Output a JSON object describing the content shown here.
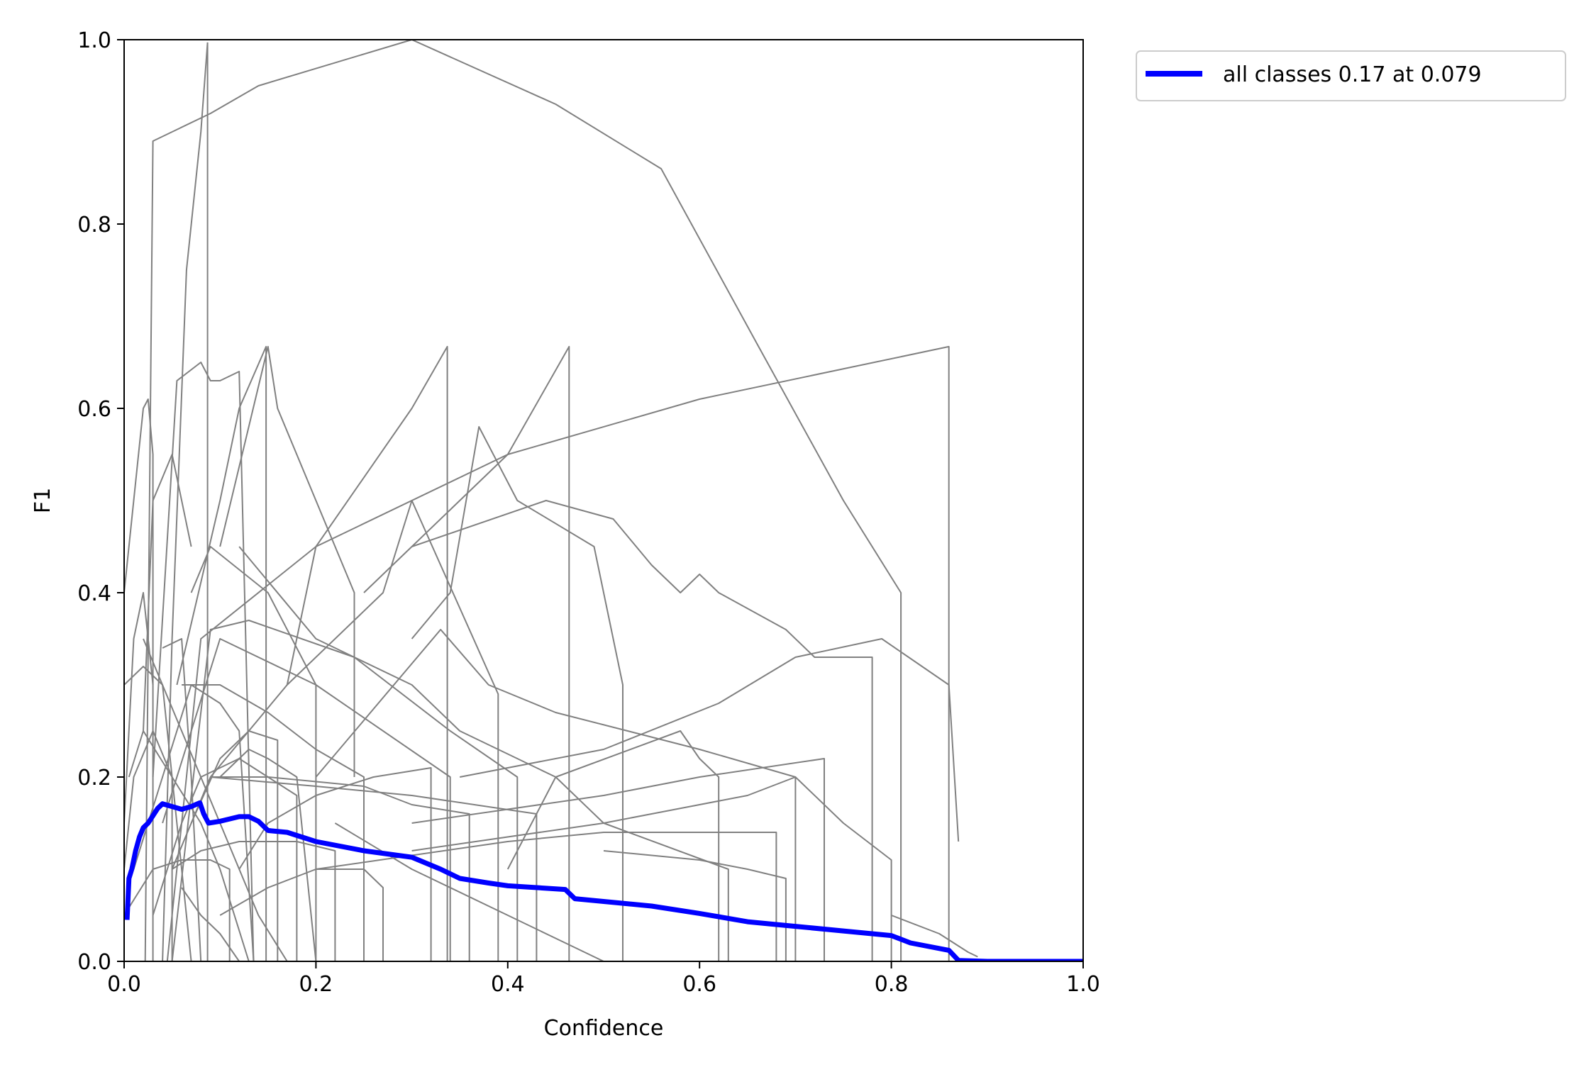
{
  "chart_data": {
    "type": "line",
    "xlabel": "Confidence",
    "ylabel": "F1",
    "xlim": [
      0.0,
      1.0
    ],
    "ylim": [
      0.0,
      1.0
    ],
    "xticks": [
      "0.0",
      "0.2",
      "0.4",
      "0.6",
      "0.8",
      "1.0"
    ],
    "yticks": [
      "0.0",
      "0.2",
      "0.4",
      "0.6",
      "0.8",
      "1.0"
    ],
    "grid": false,
    "legend": {
      "placement": "outside-top-right",
      "entries": [
        "all classes 0.17 at 0.079"
      ]
    },
    "colors": {
      "per_class": "#808080",
      "all_classes": "#0000ff"
    },
    "series": [
      {
        "name": "all classes 0.17 at 0.079",
        "color": "#0000ff",
        "x": [
          0.003,
          0.005,
          0.008,
          0.012,
          0.016,
          0.02,
          0.025,
          0.03,
          0.035,
          0.04,
          0.05,
          0.06,
          0.07,
          0.079,
          0.083,
          0.088,
          0.1,
          0.12,
          0.13,
          0.14,
          0.15,
          0.17,
          0.2,
          0.25,
          0.3,
          0.33,
          0.35,
          0.38,
          0.4,
          0.46,
          0.47,
          0.55,
          0.6,
          0.65,
          0.7,
          0.75,
          0.8,
          0.82,
          0.86,
          0.87,
          0.9,
          1.0
        ],
        "y": [
          0.045,
          0.09,
          0.1,
          0.12,
          0.135,
          0.145,
          0.15,
          0.158,
          0.166,
          0.171,
          0.168,
          0.165,
          0.168,
          0.172,
          0.16,
          0.15,
          0.152,
          0.157,
          0.157,
          0.152,
          0.142,
          0.14,
          0.13,
          0.12,
          0.113,
          0.1,
          0.09,
          0.085,
          0.082,
          0.078,
          0.068,
          0.06,
          0.052,
          0.043,
          0.038,
          0.033,
          0.028,
          0.02,
          0.012,
          0.001,
          0.0,
          0.0
        ]
      },
      {
        "x": [
          0.022,
          0.03,
          0.09,
          0.14,
          0.3,
          0.45,
          0.56,
          0.66,
          0.75,
          0.81,
          0.81
        ],
        "y": [
          0.0,
          0.89,
          0.92,
          0.95,
          1.0,
          0.93,
          0.86,
          0.67,
          0.5,
          0.4,
          0.0
        ]
      },
      {
        "x": [
          0.04,
          0.05,
          0.065,
          0.08,
          0.087
        ],
        "y": [
          0.0,
          0.35,
          0.75,
          0.9,
          0.997
        ]
      },
      {
        "x": [
          0.087,
          0.087
        ],
        "y": [
          0.997,
          0.0
        ]
      },
      {
        "x": [
          0.045,
          0.08,
          0.2,
          0.4,
          0.6,
          0.86,
          0.86
        ],
        "y": [
          0.0,
          0.35,
          0.45,
          0.55,
          0.61,
          0.667,
          0.0
        ]
      },
      {
        "x": [
          0.03,
          0.055,
          0.08,
          0.09,
          0.1,
          0.12,
          0.135
        ],
        "y": [
          0.2,
          0.63,
          0.65,
          0.63,
          0.63,
          0.64,
          0.0
        ]
      },
      {
        "x": [
          0.0,
          0.02,
          0.025,
          0.03,
          0.03
        ],
        "y": [
          0.4,
          0.6,
          0.61,
          0.55,
          0.0
        ]
      },
      {
        "x": [
          0.055,
          0.1,
          0.12,
          0.148,
          0.148
        ],
        "y": [
          0.3,
          0.5,
          0.6,
          0.667,
          0.0
        ]
      },
      {
        "x": [
          0.1,
          0.15,
          0.16,
          0.2,
          0.24,
          0.24
        ],
        "y": [
          0.45,
          0.667,
          0.6,
          0.5,
          0.4,
          0.2
        ]
      },
      {
        "x": [
          0.05,
          0.09,
          0.17,
          0.27,
          0.3,
          0.39,
          0.39
        ],
        "y": [
          0.1,
          0.2,
          0.3,
          0.4,
          0.5,
          0.29,
          0.0
        ]
      },
      {
        "x": [
          0.17,
          0.2,
          0.3,
          0.337,
          0.337
        ],
        "y": [
          0.3,
          0.45,
          0.6,
          0.667,
          0.0
        ]
      },
      {
        "x": [
          0.25,
          0.3,
          0.35,
          0.4,
          0.464,
          0.464
        ],
        "y": [
          0.4,
          0.45,
          0.5,
          0.55,
          0.667,
          0.0
        ]
      },
      {
        "x": [
          0.3,
          0.34,
          0.37,
          0.41,
          0.49,
          0.52,
          0.52
        ],
        "y": [
          0.35,
          0.4,
          0.58,
          0.5,
          0.45,
          0.3,
          0.0
        ]
      },
      {
        "x": [
          0.3,
          0.44,
          0.51,
          0.55,
          0.58,
          0.6,
          0.62,
          0.69,
          0.72,
          0.78,
          0.78
        ],
        "y": [
          0.45,
          0.5,
          0.48,
          0.43,
          0.4,
          0.42,
          0.4,
          0.36,
          0.33,
          0.33,
          0.0
        ]
      },
      {
        "x": [
          0.2,
          0.33,
          0.38,
          0.45,
          0.6,
          0.7,
          0.75,
          0.8,
          0.8
        ],
        "y": [
          0.2,
          0.36,
          0.3,
          0.27,
          0.23,
          0.2,
          0.15,
          0.11,
          0.0
        ]
      },
      {
        "x": [
          0.35,
          0.5,
          0.62,
          0.7,
          0.79,
          0.86,
          0.87
        ],
        "y": [
          0.2,
          0.23,
          0.28,
          0.33,
          0.35,
          0.3,
          0.13
        ]
      },
      {
        "x": [
          0.4,
          0.45,
          0.58,
          0.6,
          0.62,
          0.62
        ],
        "y": [
          0.1,
          0.2,
          0.25,
          0.22,
          0.2,
          0.0
        ]
      },
      {
        "x": [
          0.3,
          0.5,
          0.6,
          0.73,
          0.73
        ],
        "y": [
          0.15,
          0.18,
          0.2,
          0.22,
          0.0
        ]
      },
      {
        "x": [
          0.3,
          0.5,
          0.65,
          0.7,
          0.7
        ],
        "y": [
          0.12,
          0.15,
          0.18,
          0.2,
          0.0
        ]
      },
      {
        "x": [
          0.12,
          0.2,
          0.3,
          0.35,
          0.45,
          0.5,
          0.63,
          0.63
        ],
        "y": [
          0.45,
          0.35,
          0.3,
          0.25,
          0.2,
          0.15,
          0.1,
          0.0
        ]
      },
      {
        "x": [
          0.2,
          0.4,
          0.5,
          0.68,
          0.68
        ],
        "y": [
          0.1,
          0.13,
          0.14,
          0.14,
          0.0
        ]
      },
      {
        "x": [
          0.04,
          0.1,
          0.2,
          0.34,
          0.34
        ],
        "y": [
          0.15,
          0.35,
          0.3,
          0.2,
          0.0
        ]
      },
      {
        "x": [
          0.02,
          0.03,
          0.05,
          0.07
        ],
        "y": [
          0.25,
          0.5,
          0.55,
          0.45
        ]
      },
      {
        "x": [
          0.05,
          0.09,
          0.13,
          0.24,
          0.34,
          0.41,
          0.41
        ],
        "y": [
          0.0,
          0.36,
          0.37,
          0.33,
          0.25,
          0.2,
          0.0
        ]
      },
      {
        "x": [
          0.09,
          0.2,
          0.3,
          0.43,
          0.43
        ],
        "y": [
          0.2,
          0.19,
          0.18,
          0.16,
          0.0
        ]
      },
      {
        "x": [
          0.06,
          0.1,
          0.15,
          0.2,
          0.25,
          0.25
        ],
        "y": [
          0.3,
          0.3,
          0.27,
          0.23,
          0.2,
          0.0
        ]
      },
      {
        "x": [
          0.01,
          0.04,
          0.07,
          0.1,
          0.12,
          0.135
        ],
        "y": [
          0.1,
          0.2,
          0.3,
          0.28,
          0.25,
          0.0
        ]
      },
      {
        "x": [
          0.07,
          0.1,
          0.13,
          0.16,
          0.16
        ],
        "y": [
          0.15,
          0.22,
          0.25,
          0.24,
          0.0
        ]
      },
      {
        "x": [
          0.12,
          0.15,
          0.2,
          0.26,
          0.32,
          0.32
        ],
        "y": [
          0.1,
          0.15,
          0.18,
          0.2,
          0.21,
          0.0
        ]
      },
      {
        "x": [
          0.03,
          0.06,
          0.08,
          0.12,
          0.15,
          0.18,
          0.18
        ],
        "y": [
          0.05,
          0.15,
          0.2,
          0.22,
          0.2,
          0.18,
          0.0
        ]
      },
      {
        "x": [
          0.0,
          0.03,
          0.06,
          0.09,
          0.11,
          0.11
        ],
        "y": [
          0.05,
          0.1,
          0.11,
          0.11,
          0.1,
          0.0
        ]
      },
      {
        "x": [
          0.1,
          0.15,
          0.2,
          0.25,
          0.27,
          0.27
        ],
        "y": [
          0.05,
          0.08,
          0.1,
          0.1,
          0.08,
          0.0
        ]
      },
      {
        "x": [
          0.05,
          0.08,
          0.12,
          0.18,
          0.22,
          0.22
        ],
        "y": [
          0.1,
          0.12,
          0.13,
          0.13,
          0.12,
          0.0
        ]
      },
      {
        "x": [
          0.06,
          0.08,
          0.1,
          0.12
        ],
        "y": [
          0.08,
          0.05,
          0.03,
          0.0
        ]
      },
      {
        "x": [
          0.0,
          0.02,
          0.04,
          0.06,
          0.07
        ],
        "y": [
          0.3,
          0.32,
          0.3,
          0.1,
          0.0
        ]
      },
      {
        "x": [
          0.005,
          0.02,
          0.05,
          0.08,
          0.1,
          0.13
        ],
        "y": [
          0.2,
          0.25,
          0.2,
          0.15,
          0.1,
          0.0
        ]
      },
      {
        "x": [
          0.0,
          0.01,
          0.03,
          0.05,
          0.05
        ],
        "y": [
          0.1,
          0.2,
          0.25,
          0.2,
          0.0
        ]
      },
      {
        "x": [
          0.09,
          0.15,
          0.25,
          0.3,
          0.36,
          0.36
        ],
        "y": [
          0.2,
          0.2,
          0.19,
          0.17,
          0.16,
          0.0
        ]
      },
      {
        "x": [
          0.22,
          0.3,
          0.4,
          0.46,
          0.5
        ],
        "y": [
          0.15,
          0.1,
          0.05,
          0.02,
          0.0
        ]
      },
      {
        "x": [
          0.5,
          0.6,
          0.65,
          0.69,
          0.69
        ],
        "y": [
          0.12,
          0.11,
          0.1,
          0.09,
          0.0
        ]
      },
      {
        "x": [
          0.8,
          0.85,
          0.88,
          0.89
        ],
        "y": [
          0.05,
          0.03,
          0.01,
          0.005
        ]
      },
      {
        "x": [
          0.02,
          0.06,
          0.1,
          0.14,
          0.17
        ],
        "y": [
          0.35,
          0.25,
          0.15,
          0.05,
          0.0
        ]
      },
      {
        "x": [
          0.0,
          0.01,
          0.02,
          0.03
        ],
        "y": [
          0.15,
          0.35,
          0.4,
          0.3
        ]
      },
      {
        "x": [
          0.04,
          0.06,
          0.07,
          0.08
        ],
        "y": [
          0.34,
          0.35,
          0.2,
          0.0
        ]
      },
      {
        "x": [
          0.07,
          0.09,
          0.15,
          0.2,
          0.2
        ],
        "y": [
          0.4,
          0.45,
          0.4,
          0.3,
          0.0
        ]
      },
      {
        "x": [
          0.1,
          0.13,
          0.15,
          0.18,
          0.2
        ],
        "y": [
          0.2,
          0.23,
          0.22,
          0.2,
          0.0
        ]
      }
    ]
  }
}
